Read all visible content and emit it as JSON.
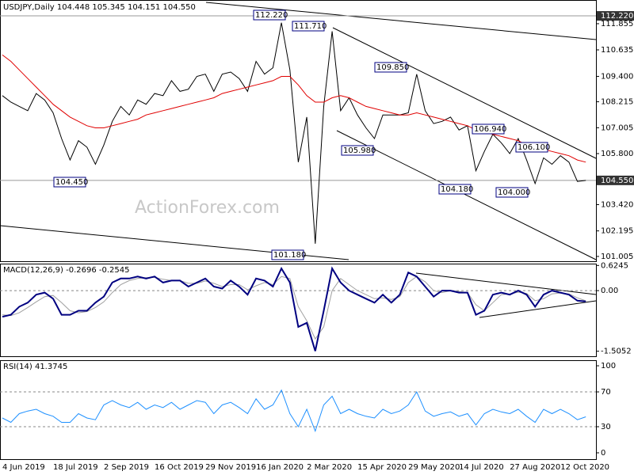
{
  "chart_data": [
    {
      "type": "line",
      "title": "USDJPY,Daily  104.448 105.345 104.151 104.550",
      "ylim": [
        100.78,
        112.96
      ],
      "yticks": [
        111.855,
        110.635,
        {
          "value": 109.4,
          "label": "109.400"
        },
        108.215,
        107.005,
        {
          "value": 105.8,
          "label": "105.800"
        },
        {
          "value": 103.42,
          "label": "103.420"
        },
        102.195,
        101.005
      ],
      "markers": [
        {
          "value": 112.22,
          "label": "112.220"
        },
        {
          "value": 104.55,
          "label": "104.550"
        }
      ],
      "annotations": [
        "112.220",
        "111.710",
        "109.850",
        "105.980",
        "106.940",
        "104.450",
        "104.180",
        "106.100",
        "104.000",
        "101.180"
      ],
      "watermark": "ActionForex.com",
      "series": [
        {
          "color": "#000000",
          "values": [
            108.5,
            108.2,
            108.0,
            107.8,
            108.6,
            108.3,
            107.7,
            106.5,
            105.5,
            106.4,
            106.1,
            105.3,
            106.2,
            107.3,
            108.0,
            107.6,
            108.3,
            108.1,
            108.6,
            108.5,
            109.2,
            108.7,
            108.8,
            109.4,
            109.5,
            108.7,
            109.5,
            109.6,
            109.3,
            108.7,
            110.1,
            109.5,
            109.8,
            111.9,
            109.7,
            105.4,
            107.5,
            101.6,
            108.0,
            111.5,
            107.8,
            108.4,
            107.6,
            107.0,
            106.5,
            107.6,
            107.6,
            107.6,
            107.7,
            109.5,
            107.8,
            107.2,
            107.3,
            107.5,
            106.9,
            107.1,
            105.0,
            105.9,
            106.7,
            106.3,
            105.8,
            106.5,
            105.5,
            104.4,
            105.6,
            105.3,
            105.7,
            105.4,
            104.5,
            104.55
          ]
        },
        {
          "color": "#e00000",
          "values": [
            110.4,
            110.1,
            109.7,
            109.3,
            108.9,
            108.5,
            108.1,
            107.8,
            107.5,
            107.3,
            107.1,
            107.0,
            107.0,
            107.1,
            107.2,
            107.3,
            107.4,
            107.6,
            107.7,
            107.8,
            107.9,
            108.0,
            108.1,
            108.2,
            108.3,
            108.4,
            108.6,
            108.7,
            108.8,
            108.9,
            109.0,
            109.1,
            109.2,
            109.4,
            109.4,
            109.0,
            108.5,
            108.2,
            108.2,
            108.4,
            108.5,
            108.4,
            108.2,
            108.0,
            107.9,
            107.8,
            107.7,
            107.6,
            107.6,
            107.7,
            107.6,
            107.5,
            107.4,
            107.3,
            107.2,
            107.1,
            106.9,
            106.8,
            106.7,
            106.6,
            106.5,
            106.4,
            106.2,
            106.1,
            106.0,
            105.9,
            105.8,
            105.7,
            105.5,
            105.4
          ]
        }
      ]
    },
    {
      "type": "line",
      "title": "MACD(12,26,9) -0.2696 -0.2545",
      "ylim": [
        -1.63,
        0.67
      ],
      "yticks": [
        0.6245,
        {
          "value": 0,
          "label": "0.00"
        },
        -1.5052
      ],
      "levels": [
        0
      ],
      "series": [
        {
          "color": "#a0a0a0",
          "values": [
            -0.6,
            -0.62,
            -0.55,
            -0.42,
            -0.28,
            -0.15,
            -0.12,
            -0.3,
            -0.5,
            -0.55,
            -0.52,
            -0.42,
            -0.28,
            -0.05,
            0.15,
            0.25,
            0.3,
            0.32,
            0.33,
            0.28,
            0.25,
            0.25,
            0.18,
            0.18,
            0.24,
            0.18,
            0.1,
            0.15,
            0.15,
            0.02,
            0.12,
            0.2,
            0.15,
            0.35,
            0.3,
            -0.4,
            -0.75,
            -1.2,
            -0.9,
            0.0,
            0.3,
            0.15,
            0.0,
            -0.1,
            -0.2,
            -0.18,
            -0.22,
            -0.15,
            0.2,
            0.35,
            0.22,
            0.0,
            -0.05,
            0.0,
            -0.02,
            -0.05,
            -0.35,
            -0.5,
            -0.3,
            -0.1,
            -0.08,
            -0.04,
            -0.07,
            -0.25,
            -0.2,
            -0.08,
            -0.06,
            -0.08,
            -0.18,
            -0.2545
          ]
        },
        {
          "color": "#000080",
          "values": [
            -0.65,
            -0.6,
            -0.4,
            -0.3,
            -0.1,
            -0.05,
            -0.2,
            -0.6,
            -0.6,
            -0.5,
            -0.5,
            -0.3,
            -0.15,
            0.2,
            0.3,
            0.3,
            0.35,
            0.3,
            0.35,
            0.2,
            0.25,
            0.25,
            0.1,
            0.2,
            0.3,
            0.1,
            0.05,
            0.25,
            0.1,
            -0.1,
            0.3,
            0.25,
            0.1,
            0.55,
            0.2,
            -0.9,
            -0.8,
            -1.5,
            -0.5,
            0.55,
            0.2,
            0.0,
            -0.1,
            -0.2,
            -0.3,
            -0.1,
            -0.3,
            -0.1,
            0.45,
            0.35,
            0.1,
            -0.15,
            0.0,
            0.0,
            -0.05,
            -0.05,
            -0.6,
            -0.5,
            -0.1,
            -0.05,
            -0.1,
            0.0,
            -0.1,
            -0.4,
            -0.1,
            0.0,
            -0.05,
            -0.1,
            -0.25,
            -0.2696
          ]
        }
      ]
    },
    {
      "type": "line",
      "title": "RSI(14) 41.3745",
      "ylim": [
        -7.3,
        106.4
      ],
      "yticks": [
        100,
        70,
        30,
        0
      ],
      "levels": [
        30,
        70
      ],
      "categories": [
        "4 Jun 2019",
        null,
        null,
        null,
        null,
        null,
        "18 Jul 2019",
        null,
        null,
        null,
        null,
        null,
        "2 Sep 2019",
        null,
        null,
        null,
        null,
        null,
        "16 Oct 2019",
        null,
        null,
        null,
        null,
        null,
        "29 Nov 2019",
        null,
        null,
        null,
        null,
        null,
        "16 Jan 2020",
        null,
        null,
        null,
        null,
        null,
        "2 Mar 2020",
        null,
        null,
        null,
        null,
        null,
        "15 Apr 2020",
        null,
        null,
        null,
        null,
        null,
        "29 May 2020",
        null,
        null,
        null,
        null,
        null,
        "14 Jul 2020",
        null,
        null,
        null,
        null,
        null,
        "27 Aug 2020",
        null,
        null,
        null,
        null,
        null,
        "12 Oct 2020",
        null,
        null,
        null
      ],
      "series": [
        {
          "color": "#1e90ff",
          "values": [
            40,
            35,
            45,
            48,
            50,
            45,
            42,
            35,
            35,
            45,
            40,
            38,
            55,
            60,
            55,
            52,
            58,
            50,
            55,
            52,
            58,
            50,
            55,
            60,
            58,
            45,
            55,
            58,
            52,
            45,
            62,
            50,
            55,
            72,
            45,
            30,
            50,
            25,
            55,
            65,
            45,
            50,
            45,
            42,
            40,
            50,
            45,
            48,
            55,
            70,
            48,
            42,
            45,
            47,
            42,
            45,
            32,
            45,
            50,
            47,
            45,
            50,
            42,
            35,
            50,
            45,
            50,
            45,
            38,
            41.3745
          ]
        }
      ]
    }
  ]
}
